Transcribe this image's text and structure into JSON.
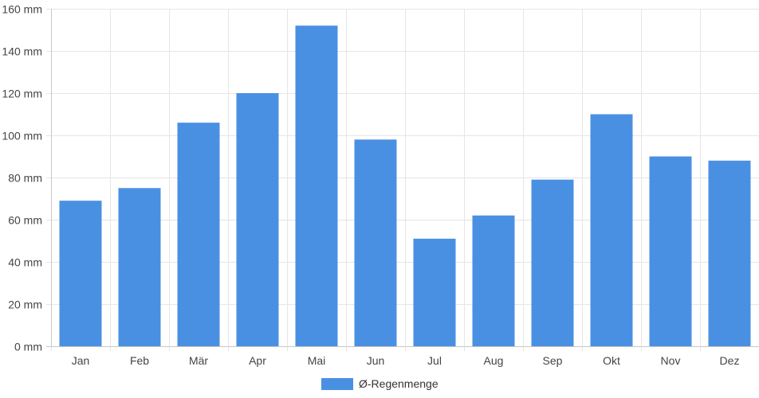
{
  "chart_data": {
    "type": "bar",
    "categories": [
      "Jan",
      "Feb",
      "Mär",
      "Apr",
      "Mai",
      "Jun",
      "Jul",
      "Aug",
      "Sep",
      "Okt",
      "Nov",
      "Dez"
    ],
    "series": [
      {
        "name": "Ø-Regenmenge",
        "color": "#4a90e2",
        "values": [
          69,
          75,
          106,
          120,
          152,
          98,
          51,
          62,
          79,
          110,
          90,
          88
        ]
      }
    ],
    "yticks": [
      "0 mm",
      "20 mm",
      "40 mm",
      "60 mm",
      "80 mm",
      "100 mm",
      "120 mm",
      "140 mm",
      "160 mm"
    ],
    "ylim": [
      0,
      160
    ],
    "grid": true,
    "legend_position": "bottom"
  }
}
